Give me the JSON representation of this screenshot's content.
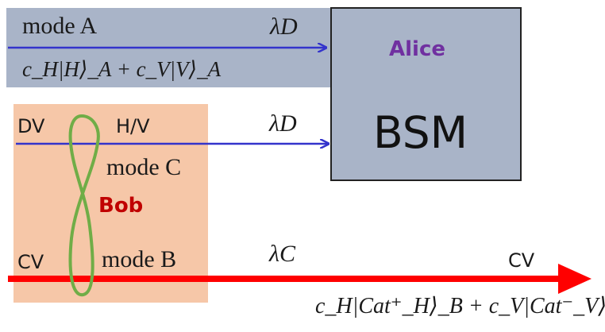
{
  "alice": {
    "mode_label": "mode A",
    "state": "c_H|H⟩_A + c_V|V⟩_A",
    "name": "Alice"
  },
  "bsm": {
    "label": "BSM"
  },
  "wavelengths": {
    "top": "λD",
    "middle": "λD",
    "bottom": "λC"
  },
  "bob": {
    "name": "Bob",
    "dv_label": "DV",
    "hv_label": "H/V",
    "mode_c_label": "mode C",
    "cv_label": "CV",
    "mode_b_label": "mode B"
  },
  "output": {
    "cv_label": "CV",
    "state": "c_H|Cat⁺_H⟩_B + c_V|Cat⁻_V⟩_B"
  },
  "colors": {
    "alice_band": "#a9b4c8",
    "bob_region": "#f6c7a8",
    "bsm_box": "#a9b4c8",
    "blue_beam": "#3333cc",
    "red_beam": "#ff0000",
    "entanglement_loop": "#70ad47",
    "alice_text": "#7030a0",
    "bob_text": "#c00000"
  }
}
